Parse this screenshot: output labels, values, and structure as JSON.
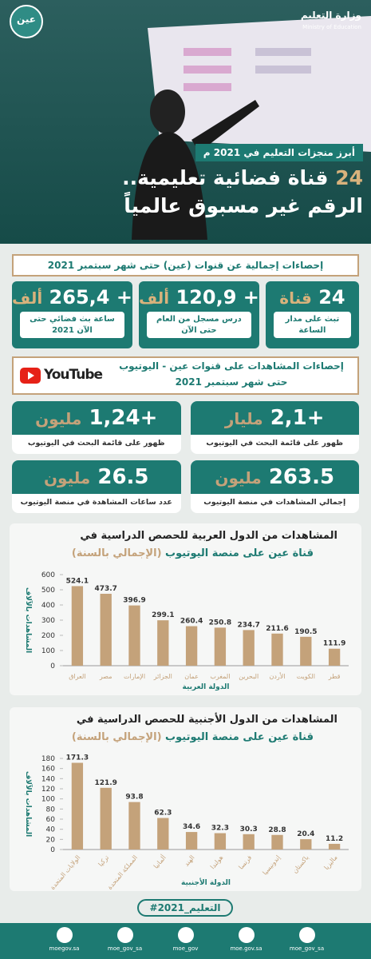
{
  "header": {
    "ministry": "وزارة التعليم",
    "ministry_en": "Ministry of Education",
    "logo": "عين"
  },
  "banner": "أبرز منجزات التعليم في 2021 م",
  "headline": {
    "number": "24",
    "line1": "قناة فضائية تعليمية..",
    "line2": "الرقم غير مسبوق عالمياً"
  },
  "section1": {
    "title": "إحصاءات إجمالية عن قنوات (عين) حتى شهر سبتمبر 2021",
    "cards": [
      {
        "value": "24",
        "unit": "قناة",
        "caption": "تبث على مدار الساعة"
      },
      {
        "value": "+ 120,9",
        "unit": "ألف",
        "caption": "درس مسجل من العام حتى الآن"
      },
      {
        "value": "+ 265,4",
        "unit": "ألف",
        "caption": "ساعة بث فضائي حتى الآن 2021"
      }
    ]
  },
  "section2": {
    "title_line1": "إحصاءات المشاهدات على قنوات عين - اليوتيوب",
    "title_line2": "حتى شهر سبتمبر 2021",
    "logo": "YouTube",
    "cards": [
      {
        "value": "+2,1",
        "unit": "مليار",
        "caption": "ظهور على قائمة البحث في اليوتيوب"
      },
      {
        "value": "+1,24",
        "unit": "مليون",
        "caption": "ظهور على قائمة البحث في اليوتيوب"
      },
      {
        "value": "263.5",
        "unit": "مليون",
        "caption": "إجمالي المشاهدات في منصة اليوتيوب"
      },
      {
        "value": "26.5",
        "unit": "مليون",
        "caption": "عدد ساعات المشاهدة في منصة اليوتيوب"
      }
    ]
  },
  "chart_data": [
    {
      "type": "bar",
      "title": "المشاهدات من الدول العربية للحصص الدراسية في",
      "subtitle": "قناة عين على منصة اليوتيوب",
      "subtitle_note": "(الإجمالي بالسنة)",
      "y_label": "المشاهدات بالآلاف",
      "x_label": "الدولة العربية",
      "categories": [
        "العراق",
        "مصر",
        "الإمارات",
        "الجزائر",
        "عمان",
        "المغرب",
        "البحرين",
        "الأردن",
        "الكويت",
        "قطر"
      ],
      "values": [
        524.1,
        473.7,
        396.9,
        299.1,
        260.4,
        250.8,
        234.7,
        211.6,
        190.5,
        111.9
      ],
      "color": "#c4a27a",
      "ylim": [
        0,
        600
      ],
      "yticks": [
        0,
        100,
        200,
        300,
        400,
        500,
        600
      ],
      "grid": false,
      "rotate_labels": false
    },
    {
      "type": "bar",
      "title": "المشاهدات من الدول الأجنبية للحصص الدراسية في",
      "subtitle": "قناة عين على منصة اليوتيوب",
      "subtitle_note": "(الإجمالي بالسنة)",
      "y_label": "المشاهدات بالآلاف",
      "x_label": "الدولة الأجنبية",
      "categories": [
        "الولايات المتحدة",
        "تركيا",
        "المملكة المتحدة",
        "ألمانيا",
        "الهند",
        "هولندا",
        "فرنسا",
        "إندونيسيا",
        "باكستان",
        "ماليزيا"
      ],
      "values": [
        171.3,
        121.9,
        93.8,
        62.3,
        34.6,
        32.3,
        30.3,
        28.8,
        20.4,
        11.2
      ],
      "color": "#c4a27a",
      "ylim": [
        0,
        180
      ],
      "yticks": [
        0,
        20,
        40,
        60,
        80,
        100,
        120,
        140,
        160,
        180
      ],
      "grid": false,
      "rotate_labels": true
    }
  ],
  "hashtag": "#التعليم_2021",
  "social": [
    "moegov.sa",
    "moe_gov_sa",
    "moe_gov",
    "moe.gov.sa",
    "moe_gov_sa"
  ]
}
